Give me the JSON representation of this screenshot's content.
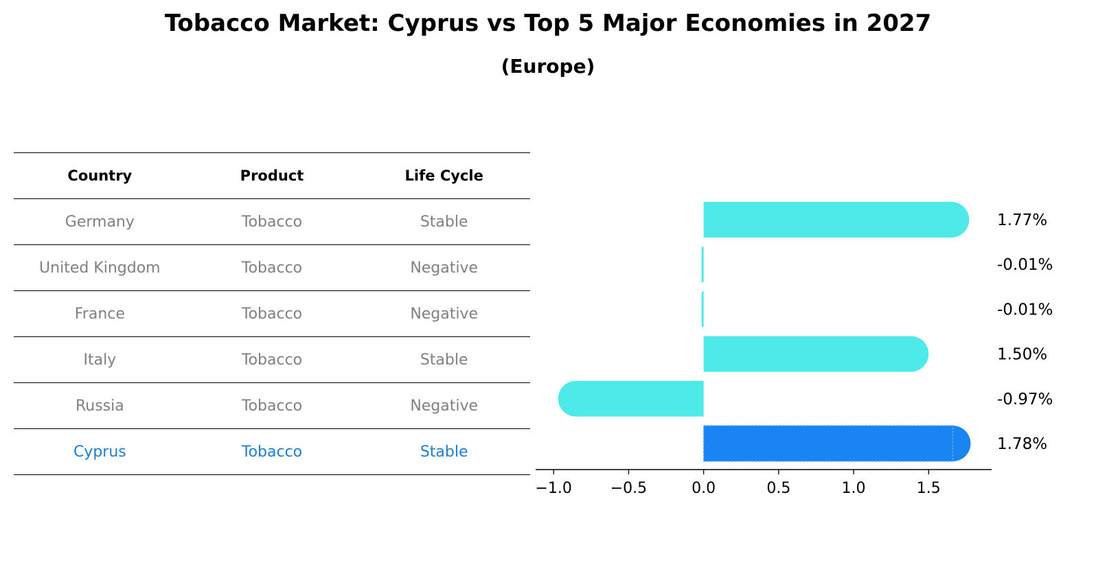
{
  "title": "Tobacco Market: Cyprus vs Top 5 Major Economies in 2027",
  "subtitle": "(Europe)",
  "table": {
    "headers": [
      "Country",
      "Product",
      "Life Cycle"
    ],
    "rows": [
      [
        "Germany",
        "Tobacco",
        "Stable"
      ],
      [
        "United Kingdom",
        "Tobacco",
        "Negative"
      ],
      [
        "France",
        "Tobacco",
        "Negative"
      ],
      [
        "Italy",
        "Tobacco",
        "Stable"
      ],
      [
        "Russia",
        "Tobacco",
        "Negative"
      ],
      [
        "Cyprus",
        "Tobacco",
        "Stable"
      ]
    ],
    "highlight_row": 5
  },
  "chart_data": {
    "type": "bar",
    "orientation": "horizontal",
    "categories": [
      "Germany",
      "United Kingdom",
      "France",
      "Italy",
      "Russia",
      "Cyprus"
    ],
    "values": [
      1.77,
      -0.01,
      -0.01,
      1.5,
      -0.97,
      1.78
    ],
    "labels": [
      "1.77%",
      "-0.01%",
      "-0.01%",
      "1.50%",
      "-0.97%",
      "1.78%"
    ],
    "xticks": [
      -1.0,
      -0.5,
      0.0,
      0.5,
      1.0,
      1.5
    ],
    "xtick_labels": [
      "−1.0",
      "−0.5",
      "0.0",
      "0.5",
      "1.0",
      "1.5"
    ],
    "xlim": [
      -1.12,
      1.92
    ],
    "highlight_index": 5,
    "colors": {
      "bar": "#4eeae9",
      "highlight": "#1a84f2",
      "highlight_edge": "#5fa8f5"
    }
  }
}
